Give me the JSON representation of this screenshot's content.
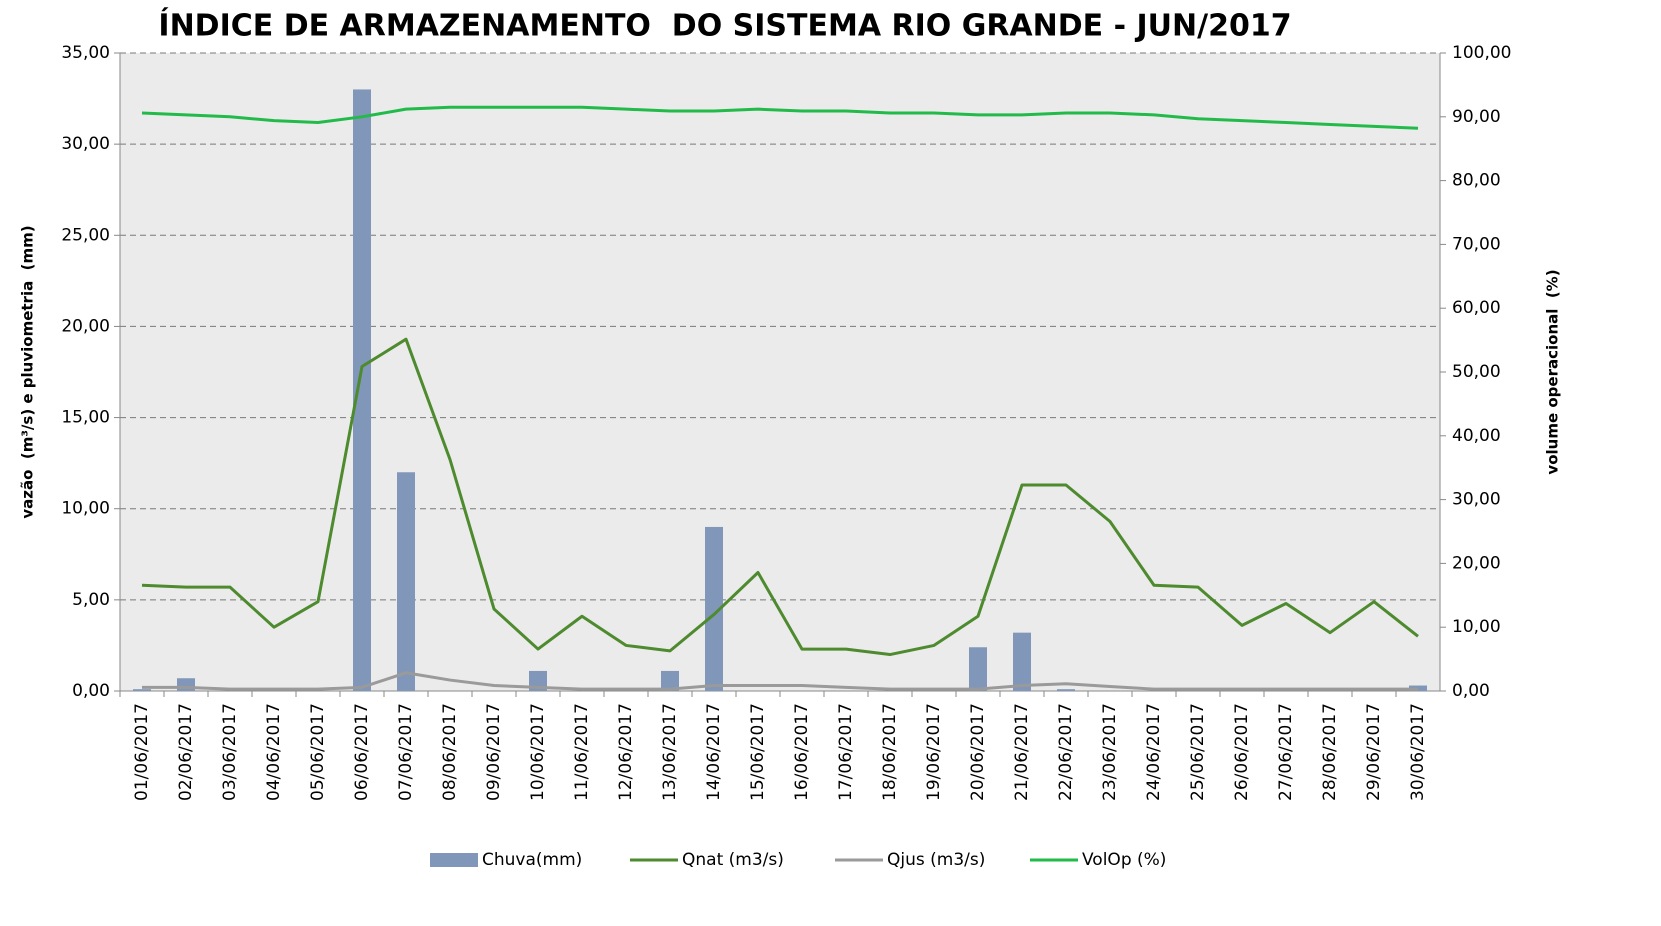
{
  "chart_data": {
    "type": "combo",
    "title": "ÍNDICE DE ARMAZENAMENTO  DO SISTEMA RIO GRANDE - JUN/2017",
    "y_label": "vazão  (m³/s) e pluviometria  (mm)",
    "y2_label": "volume operacional  (%)",
    "categories": [
      "01/06/2017",
      "02/06/2017",
      "03/06/2017",
      "04/06/2017",
      "05/06/2017",
      "06/06/2017",
      "07/06/2017",
      "08/06/2017",
      "09/06/2017",
      "10/06/2017",
      "11/06/2017",
      "12/06/2017",
      "13/06/2017",
      "14/06/2017",
      "15/06/2017",
      "16/06/2017",
      "17/06/2017",
      "18/06/2017",
      "19/06/2017",
      "20/06/2017",
      "21/06/2017",
      "22/06/2017",
      "23/06/2017",
      "24/06/2017",
      "25/06/2017",
      "26/06/2017",
      "27/06/2017",
      "28/06/2017",
      "29/06/2017",
      "30/06/2017"
    ],
    "ylim": [
      0,
      35
    ],
    "yticks": [
      {
        "value": 0,
        "label": "0,00"
      },
      {
        "value": 5,
        "label": "5,00"
      },
      {
        "value": 10,
        "label": "10,00"
      },
      {
        "value": 15,
        "label": "15,00"
      },
      {
        "value": 20,
        "label": "20,00"
      },
      {
        "value": 25,
        "label": "25,00"
      },
      {
        "value": 30,
        "label": "30,00"
      },
      {
        "value": 35,
        "label": "35,00"
      }
    ],
    "y2lim": [
      0,
      100
    ],
    "y2ticks": [
      {
        "value": 0,
        "label": "0,00"
      },
      {
        "value": 10,
        "label": "10,00"
      },
      {
        "value": 20,
        "label": "20,00"
      },
      {
        "value": 30,
        "label": "30,00"
      },
      {
        "value": 40,
        "label": "40,00"
      },
      {
        "value": 50,
        "label": "50,00"
      },
      {
        "value": 60,
        "label": "60,00"
      },
      {
        "value": 70,
        "label": "70,00"
      },
      {
        "value": 80,
        "label": "80,00"
      },
      {
        "value": 90,
        "label": "90,00"
      },
      {
        "value": 100,
        "label": "100,00"
      }
    ],
    "grid": true,
    "legend": "bottom",
    "series": [
      {
        "name": "Chuva(mm)",
        "type": "bar",
        "color": "#8097b9",
        "values": [
          0.1,
          0.7,
          0,
          0,
          0,
          33.0,
          12.0,
          0,
          0,
          1.1,
          0,
          0,
          1.1,
          9.0,
          0,
          0,
          0,
          0,
          0,
          2.4,
          3.2,
          0.1,
          0,
          0,
          0,
          0,
          0,
          0,
          0,
          0.3
        ]
      },
      {
        "name": "Qnat (m3/s)",
        "type": "line",
        "color": "#4e8a2e",
        "values": [
          5.8,
          5.7,
          5.7,
          3.5,
          4.9,
          17.8,
          19.3,
          12.7,
          4.5,
          2.3,
          4.1,
          2.5,
          2.2,
          4.2,
          6.5,
          2.3,
          2.3,
          2.0,
          2.5,
          4.1,
          11.3,
          11.3,
          9.3,
          5.8,
          5.7,
          3.6,
          4.8,
          3.2,
          4.9,
          3.0
        ]
      },
      {
        "name": "Qjus (m3/s)",
        "type": "line",
        "color": "#9a9a9a",
        "values": [
          0.2,
          0.2,
          0.1,
          0.1,
          0.1,
          0.2,
          1.0,
          0.6,
          0.3,
          0.2,
          0.1,
          0.1,
          0.1,
          0.3,
          0.3,
          0.3,
          0.2,
          0.1,
          0.1,
          0.1,
          0.3,
          0.4,
          0.25,
          0.1,
          0.1,
          0.1,
          0.1,
          0.1,
          0.1,
          0.1
        ]
      },
      {
        "name": "VolOp (%)",
        "type": "line",
        "axis": "y2",
        "color": "#22bb4a",
        "values": [
          90.6,
          90.3,
          90.0,
          89.4,
          89.1,
          90.0,
          91.2,
          91.5,
          91.5,
          91.5,
          91.5,
          91.2,
          90.9,
          90.9,
          91.2,
          90.9,
          90.9,
          90.6,
          90.6,
          90.3,
          90.3,
          90.6,
          90.6,
          90.3,
          89.7,
          89.4,
          89.1,
          88.8,
          88.5,
          88.2
        ]
      }
    ]
  }
}
